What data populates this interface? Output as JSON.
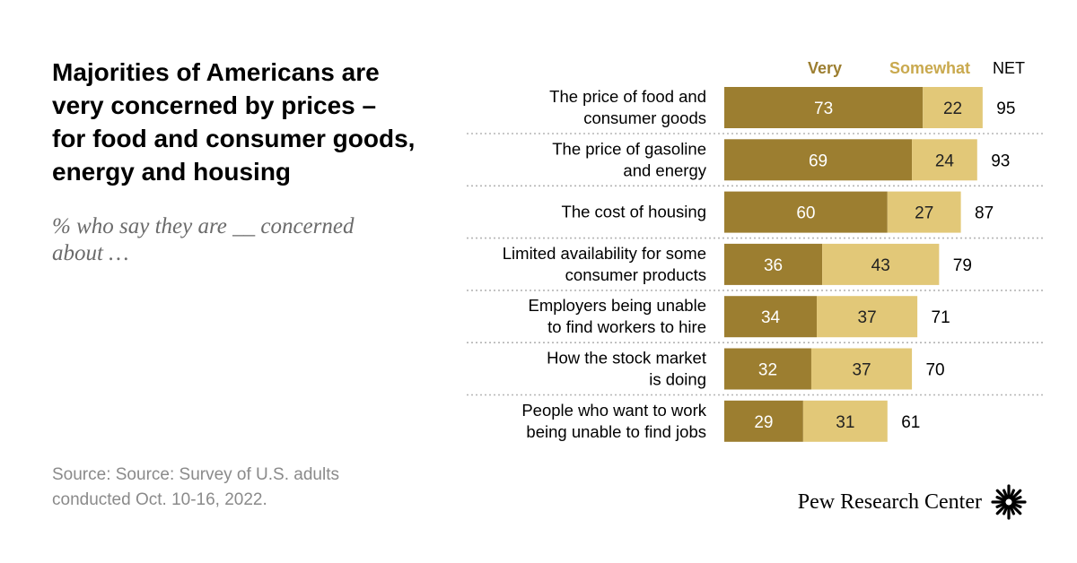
{
  "title": "Majorities of Americans are\nvery concerned by prices –\nfor food and consumer goods,\nenergy and housing",
  "subtitle": "% who say they are __ concerned\nabout …",
  "source": "Source: Source: Survey of U.S. adults\nconducted Oct. 10-16, 2022.",
  "logo": {
    "text": "Pew Research Center",
    "icon": "pew-sunburst-icon"
  },
  "colors": {
    "very": "#9c7e30",
    "somewhat": "#e2c878",
    "very_header": "#9c7e30",
    "somewhat_header": "#c9a94e",
    "divider": "#b5b5b5"
  },
  "chart_data": {
    "type": "bar",
    "orientation": "horizontal",
    "stacked": true,
    "categories": [
      "The price of food and\nconsumer goods",
      "The price of gasoline\nand energy",
      "The cost of housing",
      "Limited availability for some\nconsumer products",
      "Employers being unable\nto find workers to hire",
      "How the stock market\nis doing",
      "People who want to work\nbeing unable to find jobs"
    ],
    "series": [
      {
        "name": "Very",
        "values": [
          73,
          69,
          60,
          36,
          34,
          32,
          29
        ]
      },
      {
        "name": "Somewhat",
        "values": [
          22,
          24,
          27,
          43,
          37,
          37,
          31
        ]
      }
    ],
    "net_label": "NET",
    "net": [
      95,
      93,
      87,
      79,
      71,
      70,
      61
    ],
    "xlim": [
      0,
      100
    ],
    "grid": false,
    "legend": "top"
  }
}
